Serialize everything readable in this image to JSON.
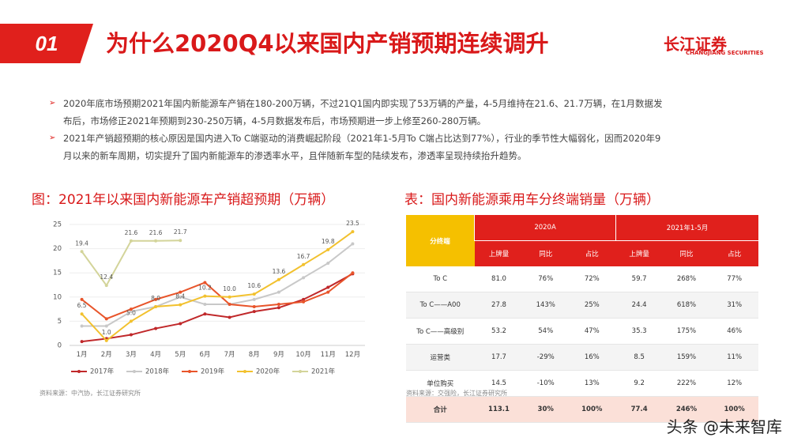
{
  "header": {
    "number": "01",
    "title": "为什么2020Q4以来国内产销预期连续调升",
    "logo_cn": "长江证券",
    "logo_en": "CHANGJIANG SECURITIES"
  },
  "bullets": [
    "2020年底市场预期2021年国内新能源车产销在180-200万辆，不过21Q1国内即实现了53万辆的产量，4-5月维持在21.6、21.7万辆，在1月数据发布后，市场修正2021年预期到230-250万辆，4-5月数据发布后，市场预期进一步上修至260-280万辆。",
    "2021年产销超预期的核心原因是国内进入To C端驱动的消费崛起阶段（2021年1-5月To C端占比达到77%），行业的季节性大幅弱化，因而2020年9月以来的新车周期，切实提升了国内新能源车的渗透率水平，且伴随新车型的陆续发布，渗透率呈现持续抬升趋势。"
  ],
  "chart_data": {
    "type": "line",
    "title": "图：2021年以来国内新能源车产销超预期（万辆）",
    "categories": [
      "1月",
      "2月",
      "3月",
      "4月",
      "5月",
      "6月",
      "7月",
      "8月",
      "9月",
      "10月",
      "11月",
      "12月"
    ],
    "ylim": [
      0,
      25
    ],
    "yticks": [
      0,
      5,
      10,
      15,
      20,
      25
    ],
    "grid": true,
    "legend": "bottom",
    "series": [
      {
        "name": "2017年",
        "color": "#c0282a",
        "values": [
          0.8,
          1.4,
          2.2,
          3.5,
          4.5,
          6.5,
          5.8,
          7.0,
          7.8,
          9.5,
          12.0,
          14.8
        ]
      },
      {
        "name": "2018年",
        "color": "#c8c8c8",
        "values": [
          4.0,
          4.0,
          7.0,
          8.0,
          10.0,
          8.5,
          8.5,
          9.5,
          11.0,
          14.0,
          17.0,
          21.0
        ]
      },
      {
        "name": "2019年",
        "color": "#e8542a",
        "values": [
          9.5,
          5.5,
          7.5,
          9.5,
          11.0,
          13.0,
          8.5,
          8.0,
          8.5,
          9.0,
          11.0,
          15.0
        ]
      },
      {
        "name": "2020年",
        "color": "#f2c12e",
        "values": [
          6.5,
          1.0,
          5.0,
          8.0,
          8.4,
          10.2,
          10.0,
          10.6,
          13.6,
          16.7,
          19.8,
          23.5
        ],
        "value_labels": [
          "6.5",
          "1.0",
          "5.0",
          "8.0",
          "8.4",
          "10.2",
          "10.0",
          "10.6",
          "13.6",
          "16.7",
          "19.8",
          "23.5"
        ]
      },
      {
        "name": "2021年",
        "color": "#d3d49a",
        "values": [
          19.4,
          12.4,
          21.6,
          21.6,
          21.7,
          null,
          null,
          null,
          null,
          null,
          null,
          null
        ],
        "value_labels": [
          "19.4",
          "12.4",
          "21.6",
          "21.6",
          "21.7",
          null,
          null,
          null,
          null,
          null,
          null,
          null
        ]
      }
    ],
    "source": "资料来源：中汽协，长江证券研究所"
  },
  "table": {
    "title": "表：国内新能源乘用车分终端销量（万辆）",
    "group_header": "分终端",
    "periods": [
      "2020A",
      "2021年1-5月"
    ],
    "columns": [
      "上牌量",
      "同比",
      "占比",
      "上牌量",
      "同比",
      "占比"
    ],
    "rows": [
      [
        "To C",
        "81.0",
        "76%",
        "72%",
        "59.7",
        "268%",
        "77%"
      ],
      [
        "To C——A00",
        "27.8",
        "143%",
        "25%",
        "24.4",
        "618%",
        "31%"
      ],
      [
        "To C——高级别",
        "53.2",
        "54%",
        "47%",
        "35.3",
        "175%",
        "46%"
      ],
      [
        "运营类",
        "17.7",
        "-29%",
        "16%",
        "8.5",
        "159%",
        "11%"
      ],
      [
        "单位购买",
        "14.5",
        "-10%",
        "13%",
        "9.2",
        "222%",
        "12%"
      ],
      [
        "合计",
        "113.1",
        "30%",
        "100%",
        "77.4",
        "246%",
        "100%"
      ]
    ],
    "source": "资料来源：交强险，长江证券研究所"
  },
  "watermark": "头条 @未来智库"
}
